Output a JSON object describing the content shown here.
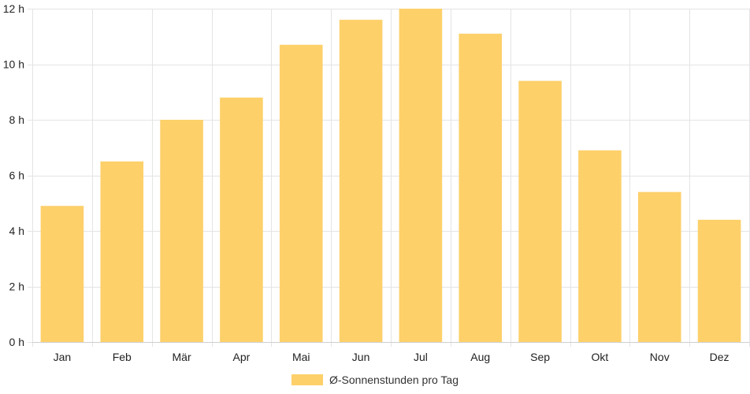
{
  "chart_data": {
    "type": "bar",
    "categories": [
      "Jan",
      "Feb",
      "Mär",
      "Apr",
      "Mai",
      "Jun",
      "Jul",
      "Aug",
      "Sep",
      "Okt",
      "Nov",
      "Dez"
    ],
    "series": [
      {
        "name": "Ø-Sonnenstunden pro Tag",
        "values": [
          4.9,
          6.5,
          8.0,
          8.8,
          10.7,
          11.6,
          12.0,
          11.1,
          9.4,
          6.9,
          5.4,
          4.4
        ],
        "color": "#fdd06a"
      }
    ],
    "y_ticks": [
      0,
      2,
      4,
      6,
      8,
      10,
      12
    ],
    "y_unit": "h",
    "ylim": [
      0,
      12
    ],
    "grid": true,
    "legend": "bottom"
  }
}
